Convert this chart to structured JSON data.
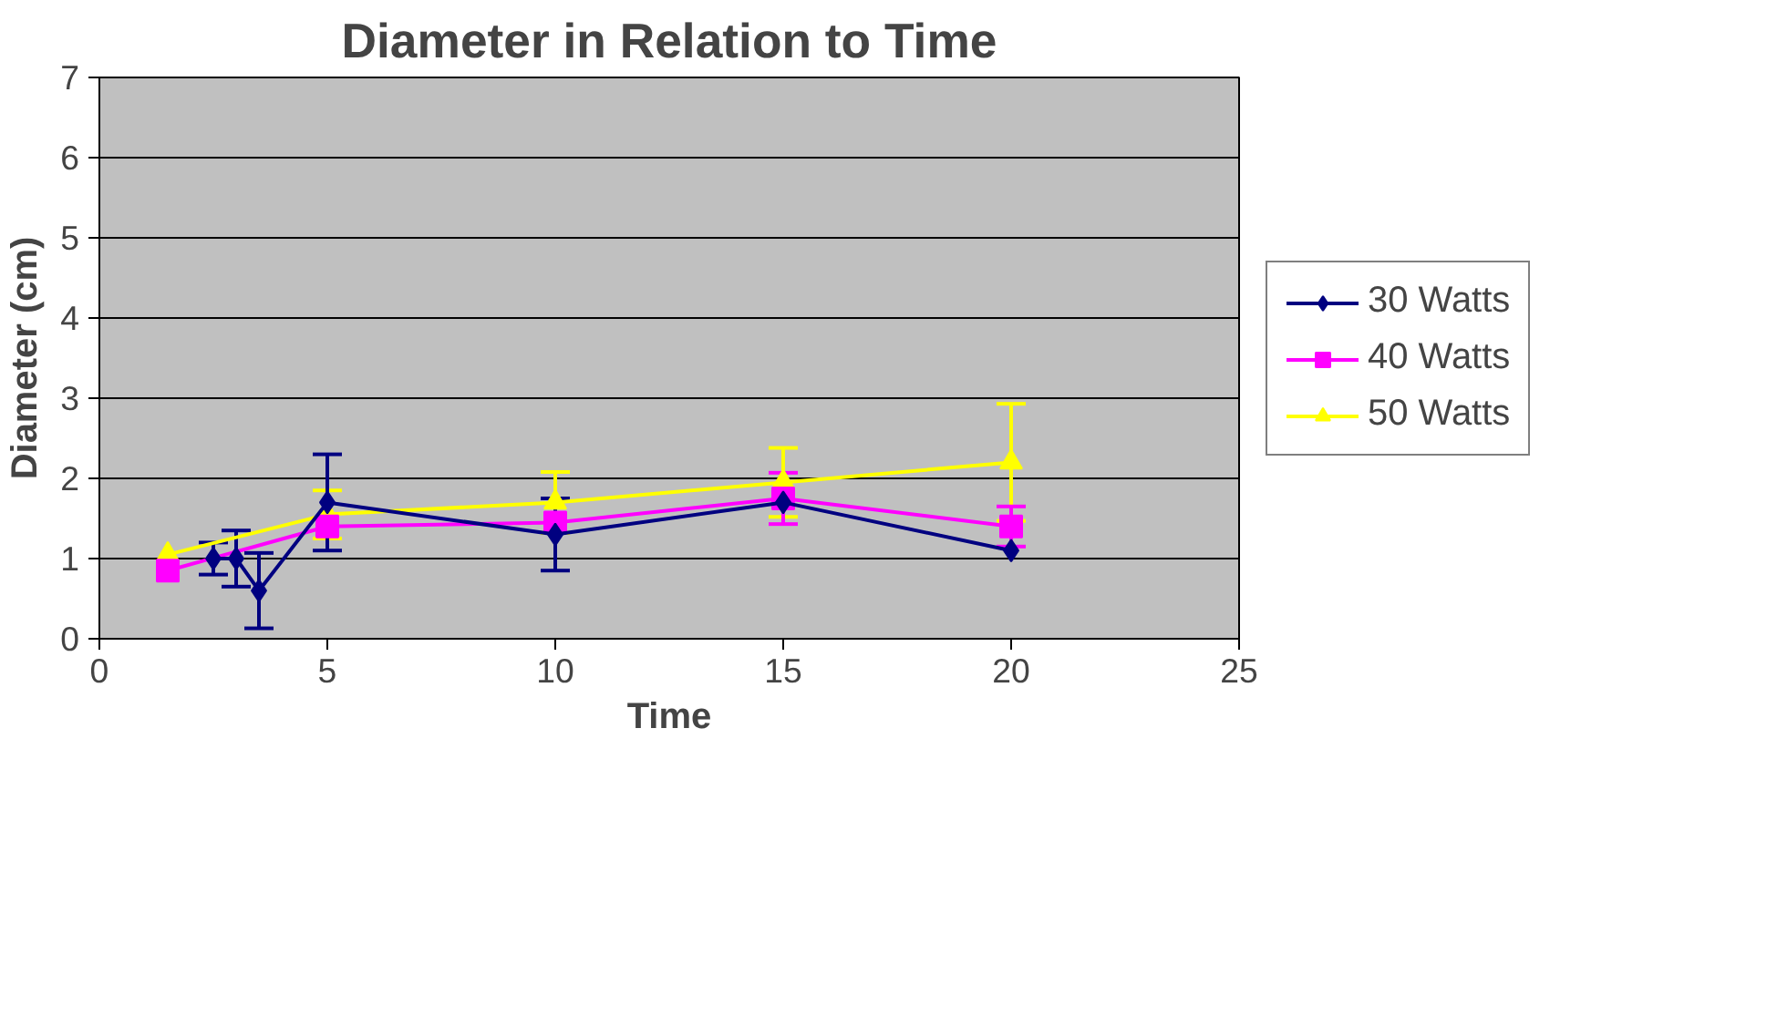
{
  "chart_data": {
    "type": "line",
    "title": "Diameter in Relation to Time",
    "xlabel": "Time",
    "ylabel": "Diameter (cm)",
    "xlim": [
      0,
      25
    ],
    "xticks": [
      0,
      5,
      10,
      15,
      20,
      25
    ],
    "ylim": [
      0,
      7
    ],
    "yticks": [
      0,
      1,
      2,
      3,
      4,
      5,
      6,
      7
    ],
    "grid": "y",
    "legend": "right",
    "line_style": "solid",
    "series": [
      {
        "name": "30 Watts",
        "color": "#000080",
        "marker": "diamond",
        "x": [
          2.5,
          3,
          3.5,
          5,
          10,
          15,
          20
        ],
        "values": [
          1.0,
          1.0,
          0.6,
          1.7,
          1.3,
          1.7,
          1.1
        ],
        "errors": [
          0.2,
          0.35,
          0.47,
          0.6,
          0.45,
          null,
          null
        ]
      },
      {
        "name": "40 Watts",
        "color": "#ff00ff",
        "marker": "square",
        "x": [
          1.5,
          5,
          10,
          15,
          20
        ],
        "values": [
          0.85,
          1.4,
          1.45,
          1.75,
          1.4
        ],
        "errors": [
          null,
          null,
          null,
          0.32,
          0.25
        ]
      },
      {
        "name": "50 Watts",
        "color": "#ffff00",
        "marker": "triangle",
        "x": [
          1.5,
          5,
          10,
          15,
          20
        ],
        "values": [
          1.05,
          1.55,
          1.7,
          1.95,
          2.2
        ],
        "errors": [
          null,
          0.3,
          0.38,
          0.43,
          0.73
        ]
      }
    ]
  }
}
